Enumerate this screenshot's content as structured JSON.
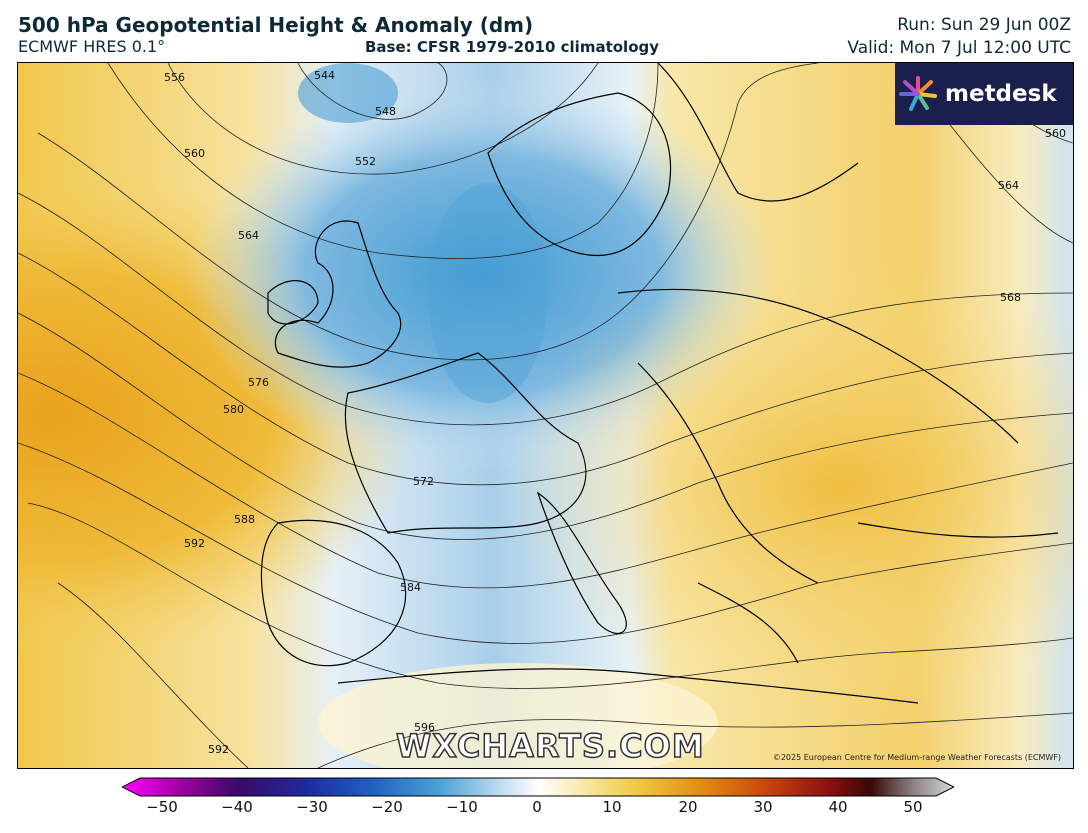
{
  "header": {
    "title": "500 hPa Geopotential Height & Anomaly (dm)",
    "model": "ECMWF HRES 0.1°",
    "base": "Base: CFSR 1979-2010 climatology",
    "run": "Run: Sun 29 Jun 00Z",
    "valid": "Valid: Mon 7 Jul 12:00 UTC"
  },
  "logo": {
    "text": "metdesk",
    "icon": "flower-burst-icon"
  },
  "watermark": "WXCHARTS.COM",
  "copyright": "©2025 European Centre for Medium-range Weather Forecasts (ECMWF)",
  "contour_labels": [
    "544",
    "548",
    "552",
    "556",
    "560",
    "564",
    "568",
    "572",
    "576",
    "580",
    "584",
    "588",
    "592",
    "596",
    "592",
    "560",
    "564",
    "568"
  ],
  "colorbar": {
    "ticks": [
      "−50",
      "−40",
      "−30",
      "−20",
      "−10",
      "0",
      "10",
      "20",
      "30",
      "40",
      "50"
    ],
    "colors": {
      "neg_extreme": "#ff00ff",
      "neg_deep": "#3a0a6a",
      "neg_mid": "#1e2a9a",
      "neg_light": "#4aa0d8",
      "zero": "#ffffff",
      "pos_light": "#f0d050",
      "pos_mid": "#e08a10",
      "pos_deep": "#b02010",
      "pos_extreme": "#d8d8d8"
    }
  },
  "map_colors": {
    "warm": "#f1c84a",
    "warm_strong": "#e9a21c",
    "cool": "#8ec3e6",
    "cool_strong": "#3f9bd3",
    "neutral": "#fdf6dc"
  }
}
